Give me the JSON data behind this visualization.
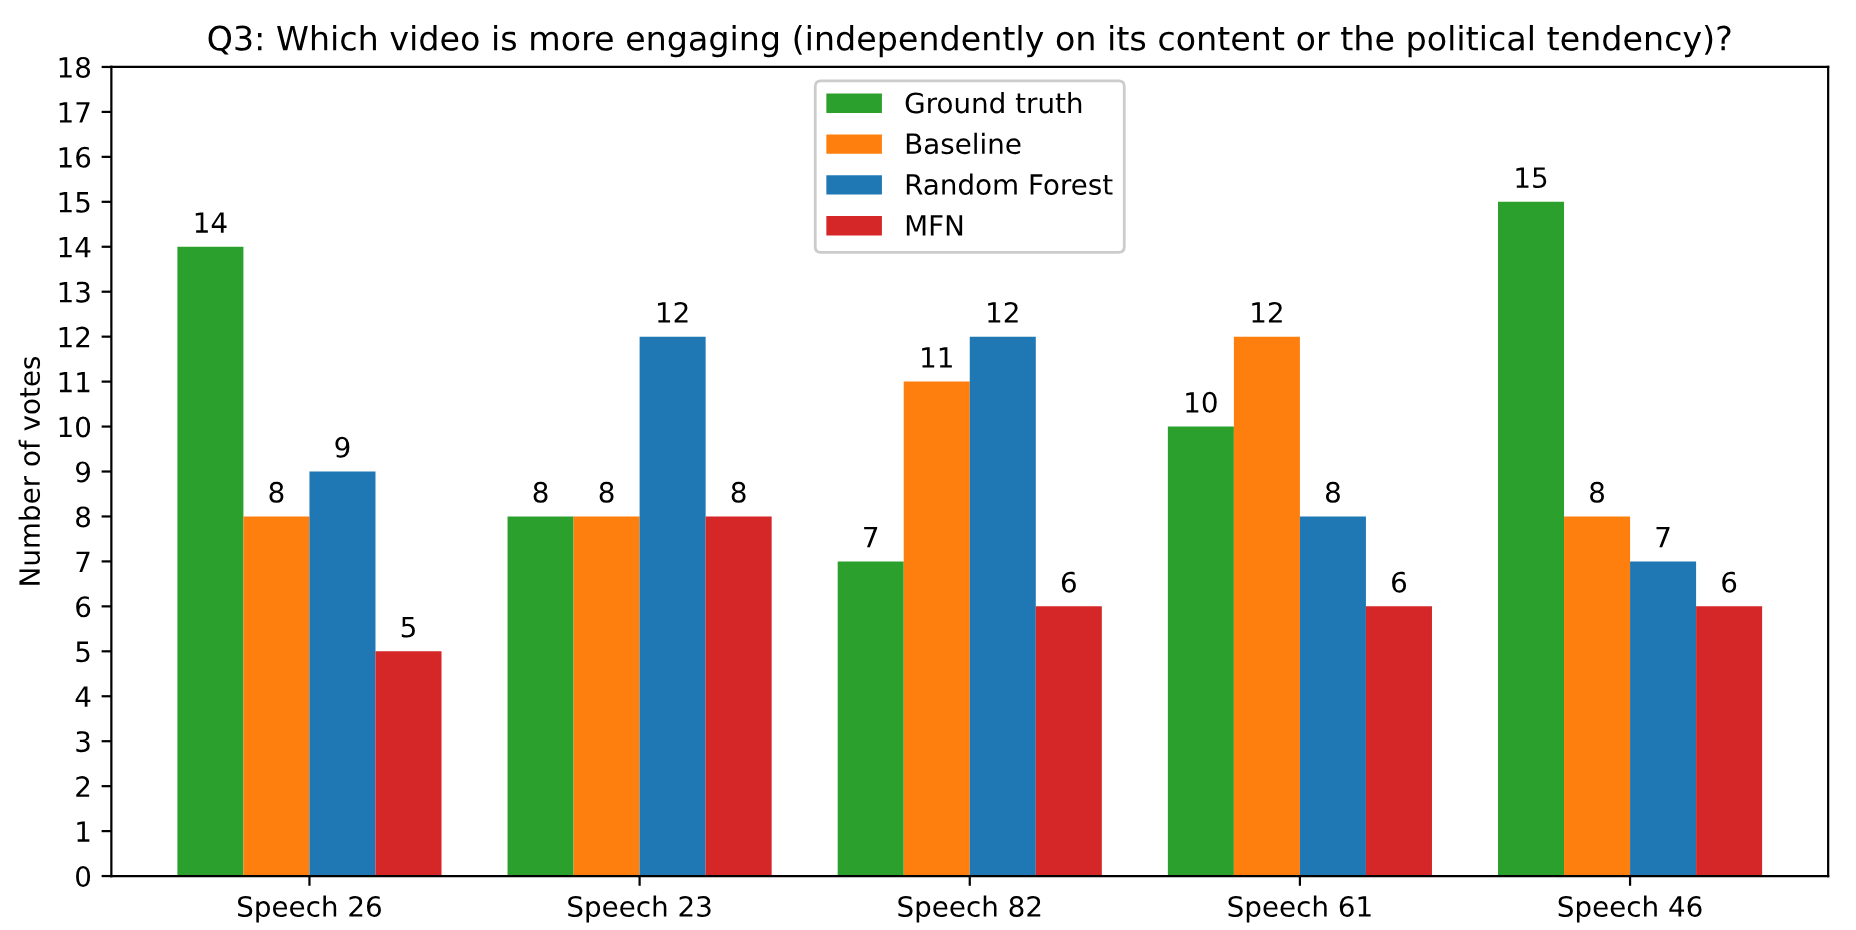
{
  "chart_data": {
    "type": "bar",
    "title": "Q3: Which video is more engaging (independently on its content or the political tendency)?",
    "ylabel": "Number of votes",
    "categories": [
      "Speech 26",
      "Speech 23",
      "Speech 82",
      "Speech 61",
      "Speech 46"
    ],
    "series": [
      {
        "name": "Ground truth",
        "color": "#2ca02c",
        "values": [
          14,
          8,
          7,
          10,
          15
        ]
      },
      {
        "name": "Baseline",
        "color": "#ff7f0e",
        "values": [
          8,
          8,
          11,
          12,
          8
        ]
      },
      {
        "name": "Random Forest",
        "color": "#1f77b4",
        "values": [
          9,
          12,
          12,
          8,
          7
        ]
      },
      {
        "name": "MFN",
        "color": "#d62728",
        "values": [
          5,
          8,
          6,
          6,
          6
        ]
      }
    ],
    "ylim": [
      0,
      18
    ],
    "yticks": [
      0,
      1,
      2,
      3,
      4,
      5,
      6,
      7,
      8,
      9,
      10,
      11,
      12,
      13,
      14,
      15,
      16,
      17,
      18
    ],
    "data_labels": true,
    "legend": "top",
    "grid": false
  }
}
